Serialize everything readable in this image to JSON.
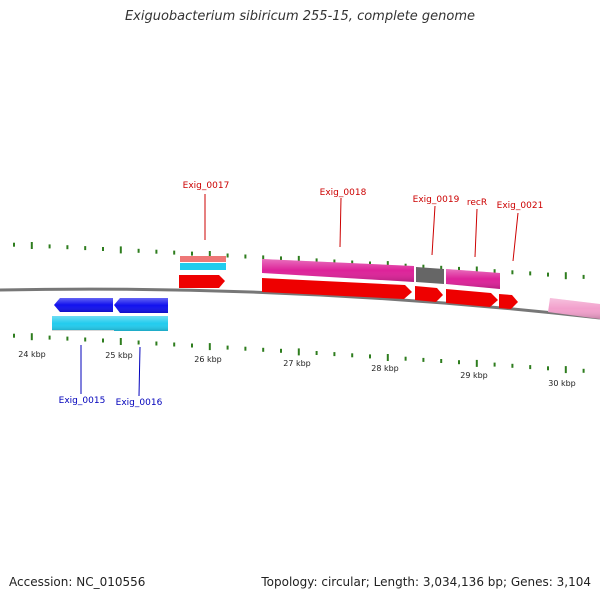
{
  "title": "Exiguobacterium sibiricum 255-15, complete genome",
  "footer": {
    "accession": "Accession: NC_010556",
    "summary": "Topology: circular; Length: 3,034,136 bp; Genes: 3,104"
  },
  "scale_labels": [
    "24 kbp",
    "25 kbp",
    "26 kbp",
    "27 kbp",
    "28 kbp",
    "29 kbp",
    "30 kbp"
  ],
  "gene_labels": {
    "top": [
      "Exig_0017",
      "Exig_0018",
      "Exig_0019",
      "recR",
      "Exig_0021"
    ],
    "bottom": [
      "Exig_0015",
      "Exig_0016"
    ]
  },
  "colors": {
    "backbone": "#777777",
    "ticks": "#2e7d1e",
    "label_forward": "#cc0000",
    "label_reverse": "#0000bb",
    "cds": "#ee0000",
    "gene_forward": "#dd2299",
    "gene_reverse": "#1111ee",
    "rna_light": "#22ccee",
    "rna_salmon": "#ee7777",
    "pseudo": "#666666",
    "pink_light": "#f2a0cc"
  }
}
